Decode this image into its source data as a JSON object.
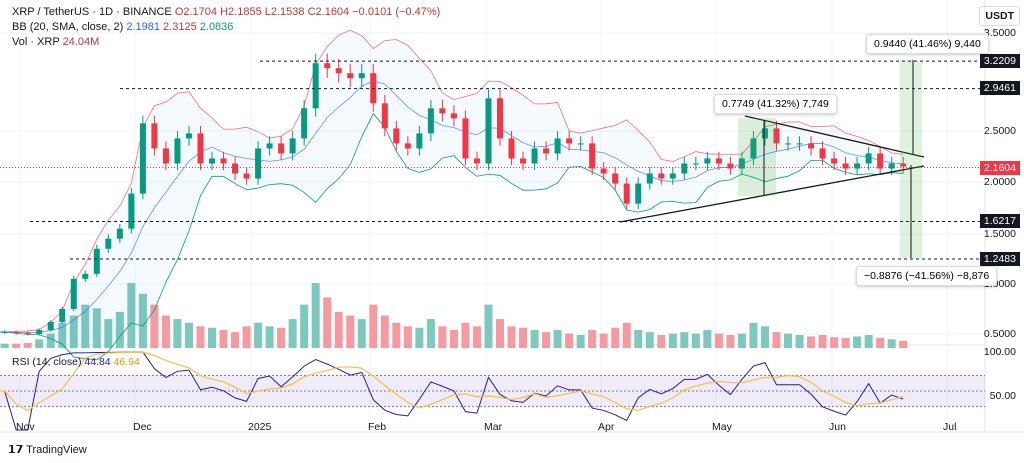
{
  "header": {
    "symbol": "XRP / TetherUS · 1D · BINANCE",
    "o": "O2.1704",
    "h": "H2.1855",
    "l": "L2.1538",
    "c": "C2.1604",
    "chg": "−0.0101 (−0.47%)",
    "bb_label": "BB (20, SMA, close, 2)",
    "bb_basis": "2.1981",
    "bb_upper": "2.3125",
    "bb_lower": "2.0836",
    "vol_label": "Vol · XRP",
    "vol_value": "24.04M"
  },
  "axis": {
    "currency": "USDT",
    "price_ticks": [
      "3.5000",
      "2.5000",
      "2.0000",
      "1.5000",
      "1.0000",
      "0.5000"
    ],
    "rsi_ticks": [
      "100.00",
      "50.00"
    ],
    "dates": [
      "Nov",
      "Dec",
      "2025",
      "Feb",
      "Mar",
      "Apr",
      "May",
      "Jun",
      "Jul"
    ]
  },
  "levels": {
    "l1": "3.2209",
    "l2": "2.9461",
    "l3": "1.6217",
    "l4": "1.2483",
    "last": "2.1604"
  },
  "annotations": {
    "measure": "0.7749 (41.32%) 7,749",
    "target_up": "0.9440 (41.46%) 9,440",
    "target_down": "−0.8876 (−41.56%) −8,876"
  },
  "rsi": {
    "label": "RSI (14, close)",
    "value": "44.84",
    "ma": "46.94"
  },
  "branding": "TradingView",
  "colors": {
    "up": "#089981",
    "down": "#f23645",
    "bb_basis": "#2962ff",
    "bb_band": "#f23645",
    "rsi": "#311b92",
    "rsi_ma": "#f5c242"
  },
  "chart_data": {
    "type": "candlestick",
    "start": "2024-10-25",
    "step_days": 3,
    "closes": [
      0.52,
      0.52,
      0.51,
      0.5,
      0.54,
      0.62,
      0.75,
      1.05,
      1.1,
      1.35,
      1.45,
      1.55,
      1.9,
      2.6,
      2.35,
      2.2,
      2.45,
      2.5,
      2.2,
      2.25,
      2.2,
      2.1,
      2.05,
      2.35,
      2.4,
      2.3,
      2.45,
      2.75,
      3.2,
      3.15,
      3.1,
      3.05,
      3.1,
      2.8,
      2.55,
      2.4,
      2.35,
      2.5,
      2.75,
      2.7,
      2.65,
      2.25,
      2.2,
      2.85,
      2.45,
      2.25,
      2.2,
      2.35,
      2.3,
      2.45,
      2.4,
      2.4,
      2.15,
      2.1,
      2.0,
      1.8,
      2.0,
      2.1,
      2.05,
      2.1,
      2.2,
      2.2,
      2.25,
      2.2,
      2.15,
      2.25,
      2.45,
      2.55,
      2.4,
      2.4,
      2.4,
      2.35,
      2.25,
      2.2,
      2.15,
      2.2,
      2.3,
      2.15,
      2.2,
      2.17
    ],
    "volumes_m": [
      5,
      6,
      6,
      7,
      12,
      20,
      35,
      45,
      60,
      55,
      40,
      50,
      90,
      75,
      60,
      45,
      40,
      35,
      30,
      28,
      25,
      22,
      30,
      35,
      30,
      28,
      40,
      60,
      90,
      70,
      50,
      45,
      40,
      60,
      45,
      35,
      30,
      28,
      40,
      30,
      25,
      35,
      30,
      60,
      40,
      30,
      28,
      25,
      22,
      25,
      20,
      18,
      25,
      20,
      28,
      35,
      25,
      22,
      18,
      20,
      22,
      20,
      25,
      20,
      18,
      20,
      35,
      30,
      22,
      20,
      18,
      16,
      18,
      15,
      14,
      16,
      18,
      14,
      12,
      10
    ],
    "price_scale": "linear",
    "ylim": [
      0.5,
      3.5
    ]
  }
}
